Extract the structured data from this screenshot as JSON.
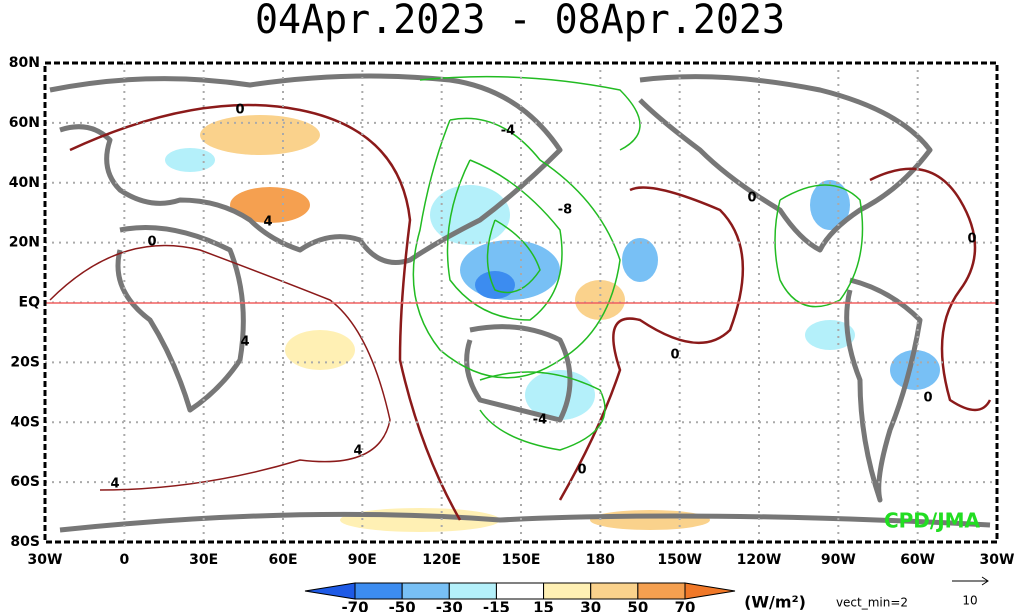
{
  "title": "04Apr.2023 - 08Apr.2023",
  "lat_labels": [
    "80N",
    "60N",
    "40N",
    "20N",
    "EQ",
    "20S",
    "40S",
    "60S",
    "80S"
  ],
  "lon_labels": [
    "30W",
    "0",
    "30E",
    "60E",
    "90E",
    "120E",
    "150E",
    "180",
    "150W",
    "120W",
    "90W",
    "60W",
    "30W"
  ],
  "contour_labels": [
    0,
    -4,
    -8,
    4,
    0,
    0,
    0,
    4,
    0,
    0,
    -4,
    4,
    0,
    4
  ],
  "credit": "CPD/JMA",
  "colorbar": {
    "labels": [
      -70,
      -50,
      -30,
      -15,
      15,
      30,
      50,
      70
    ],
    "units": "(W/m²)"
  },
  "vector_note": "vect_min=2",
  "reference_vector": "10"
}
